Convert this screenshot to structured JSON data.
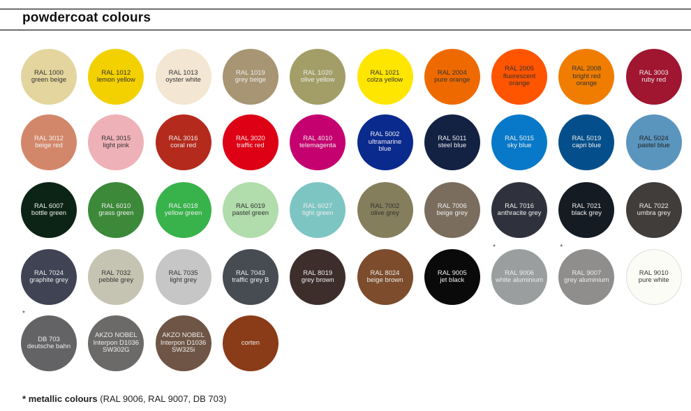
{
  "header": {
    "title": "powdercoat colours"
  },
  "swatches": [
    [
      {
        "lines": [
          "RAL 1000",
          "green beige"
        ],
        "color": "#e3d59d",
        "text": "#333"
      },
      {
        "lines": [
          "RAL 1012",
          "lemon yellow"
        ],
        "color": "#f3d000",
        "text": "#333"
      },
      {
        "lines": [
          "RAL 1013",
          "oyster white"
        ],
        "color": "#f3e6d2",
        "text": "#333"
      },
      {
        "lines": [
          "RAL 1019",
          "grey beige"
        ],
        "color": "#a79573",
        "text": "#eee"
      },
      {
        "lines": [
          "RAL 1020",
          "olive yellow"
        ],
        "color": "#a39e67",
        "text": "#eee"
      },
      {
        "lines": [
          "RAL 1021",
          "colza yellow"
        ],
        "color": "#ffe600",
        "text": "#333"
      },
      {
        "lines": [
          "RAL 2004",
          "pure orange"
        ],
        "color": "#ee6a00",
        "text": "#333"
      },
      {
        "lines": [
          "RAL 2005",
          "fluorescent",
          "orange"
        ],
        "color": "#ff5400",
        "text": "#333"
      },
      {
        "lines": [
          "RAL 2008",
          "bright red",
          "orange"
        ],
        "color": "#f07d00",
        "text": "#333"
      },
      {
        "lines": [
          "RAL 3003",
          "ruby red"
        ],
        "color": "#a01530",
        "text": "#eee"
      }
    ],
    [
      {
        "lines": [
          "RAL 3012",
          "beige red"
        ],
        "color": "#d3876a",
        "text": "#f3f3f3"
      },
      {
        "lines": [
          "RAL 3015",
          "light pink"
        ],
        "color": "#efb1b8",
        "text": "#333"
      },
      {
        "lines": [
          "RAL 3016",
          "coral red"
        ],
        "color": "#b42a1c",
        "text": "#eee"
      },
      {
        "lines": [
          "RAL 3020",
          "traffic red"
        ],
        "color": "#de0015",
        "text": "#eee"
      },
      {
        "lines": [
          "RAL 4010",
          "telemagenta"
        ],
        "color": "#c5006f",
        "text": "#eee"
      },
      {
        "lines": [
          "RAL 5002",
          "ultramarine",
          "blue"
        ],
        "color": "#0a2a8e",
        "text": "#eee"
      },
      {
        "lines": [
          "RAL 5011",
          "steel blue"
        ],
        "color": "#132143",
        "text": "#eee"
      },
      {
        "lines": [
          "RAL 5015",
          "sky blue"
        ],
        "color": "#0879c8",
        "text": "#eee"
      },
      {
        "lines": [
          "RAL 5019",
          "capri blue"
        ],
        "color": "#044f8b",
        "text": "#eee"
      },
      {
        "lines": [
          "RAL 5024",
          "pastel blue"
        ],
        "color": "#5a95be",
        "text": "#222"
      }
    ],
    [
      {
        "lines": [
          "RAL 6007",
          "bottle green"
        ],
        "color": "#0c2415",
        "text": "#eee"
      },
      {
        "lines": [
          "RAL 6010",
          "grass green"
        ],
        "color": "#3c8939",
        "text": "#eee"
      },
      {
        "lines": [
          "RAL 6018",
          "yellow green"
        ],
        "color": "#38b24a",
        "text": "#eee"
      },
      {
        "lines": [
          "RAL 6019",
          "pastel green"
        ],
        "color": "#b1dcac",
        "text": "#333"
      },
      {
        "lines": [
          "RAL 6027",
          "light green"
        ],
        "color": "#7dc5c2",
        "text": "#eee"
      },
      {
        "lines": [
          "RAL 7002",
          "olive grey"
        ],
        "color": "#847e5c",
        "text": "#333"
      },
      {
        "lines": [
          "RAL 7006",
          "beige grey"
        ],
        "color": "#7a6d5e",
        "text": "#eee"
      },
      {
        "lines": [
          "RAL 7016",
          "anthracite grey"
        ],
        "color": "#2f323c",
        "text": "#eee"
      },
      {
        "lines": [
          "RAL 7021",
          "black grey"
        ],
        "color": "#151b23",
        "text": "#eee"
      },
      {
        "lines": [
          "RAL 7022",
          "umbra grey"
        ],
        "color": "#403d3b",
        "text": "#eee"
      }
    ],
    [
      {
        "lines": [
          "RAL 7024",
          "graphite grey"
        ],
        "color": "#3f4354",
        "text": "#eee"
      },
      {
        "lines": [
          "RAL 7032",
          "pebble grey"
        ],
        "color": "#c5c4b2",
        "text": "#333"
      },
      {
        "lines": [
          "RAL 7035",
          "light grey"
        ],
        "color": "#c6c6c6",
        "text": "#333"
      },
      {
        "lines": [
          "RAL 7043",
          "traffic grey B"
        ],
        "color": "#474b52",
        "text": "#eee"
      },
      {
        "lines": [
          "RAL 8019",
          "grey brown"
        ],
        "color": "#3d2e2c",
        "text": "#eee"
      },
      {
        "lines": [
          "RAL 8024",
          "beige brown"
        ],
        "color": "#7c4c2c",
        "text": "#eee"
      },
      {
        "lines": [
          "RAL 9005",
          "jet black"
        ],
        "color": "#0b0a0b",
        "text": "#eee"
      },
      {
        "lines": [
          "RAL 9006",
          "white aluminium"
        ],
        "color": "#9a9e9e",
        "text": "#eee",
        "metallic": true
      },
      {
        "lines": [
          "RAL 9007",
          "grey aluminium"
        ],
        "color": "#8f8e8c",
        "text": "#eee",
        "metallic": true
      },
      {
        "lines": [
          "RAL 9010",
          "pure white"
        ],
        "color": "#fcfcf6",
        "text": "#333",
        "border": true
      }
    ],
    [
      {
        "lines": [
          "DB 703",
          "deutsche bahn"
        ],
        "color": "#636365",
        "text": "#eee",
        "metallic": true
      },
      {
        "lines": [
          "AKZO NOBEL",
          "Interpon D1036",
          "SW302G"
        ],
        "color": "#6b6a69",
        "text": "#eee"
      },
      {
        "lines": [
          "AKZO NOBEL",
          "Interpon D1036",
          "SW325i"
        ],
        "color": "#6e5545",
        "text": "#eee"
      },
      {
        "lines": [
          "corten"
        ],
        "color": "#8a3b17",
        "text": "#eee"
      }
    ]
  ],
  "metallic_marker": "*",
  "footnote": {
    "marker": "*",
    "bold": "metallic colours",
    "rest": " (RAL 9006, RAL 9007, DB 703)"
  }
}
